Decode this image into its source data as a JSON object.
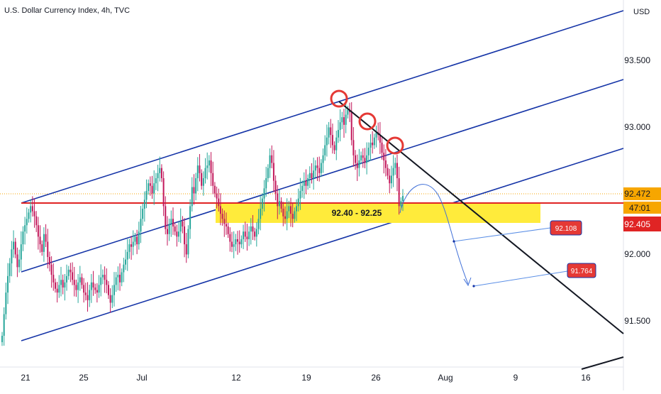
{
  "header": {
    "title": "U.S. Dollar Currency Index, 4h, TVC",
    "currency": "USD"
  },
  "chart_data": {
    "type": "candlestick",
    "ylim": [
      91.2,
      93.9
    ],
    "y_ticks": [
      "93.500",
      "93.000",
      "92.000",
      "91.500"
    ],
    "x_ticks": [
      "21",
      "25",
      "Jul",
      "12",
      "19",
      "26",
      "Aug",
      "9",
      "16"
    ],
    "price_labels": {
      "last": "92.472",
      "countdown": "47:01",
      "current": "92.405"
    },
    "zone": {
      "label": "92.40 - 92.25",
      "top": 92.4,
      "bottom": 92.25
    },
    "resistance_level": 92.405,
    "targets": [
      {
        "label": "92.108",
        "value": 92.108
      },
      {
        "label": "91.764",
        "value": 91.764
      }
    ],
    "candle_closes": [
      91.38,
      91.55,
      91.72,
      91.85,
      91.95,
      92.06,
      92.12,
      92.02,
      91.92,
      91.98,
      92.1,
      92.2,
      92.25,
      92.3,
      92.35,
      92.4,
      92.36,
      92.32,
      92.25,
      92.16,
      92.1,
      92.04,
      92.18,
      92.12,
      92.0,
      91.94,
      91.86,
      91.8,
      91.75,
      91.72,
      91.78,
      91.82,
      91.76,
      91.8,
      91.85,
      91.9,
      91.88,
      91.82,
      91.78,
      91.74,
      91.8,
      91.84,
      91.78,
      91.72,
      91.7,
      91.66,
      91.74,
      91.8,
      91.76,
      91.74,
      91.72,
      91.78,
      91.84,
      91.86,
      91.82,
      91.78,
      91.7,
      91.64,
      91.7,
      91.78,
      91.84,
      91.86,
      91.8,
      91.88,
      91.94,
      91.98,
      92.04,
      92.1,
      92.08,
      92.12,
      92.16,
      92.1,
      92.2,
      92.3,
      92.38,
      92.45,
      92.52,
      92.58,
      92.56,
      92.5,
      92.58,
      92.62,
      92.66,
      92.7,
      92.62,
      92.4,
      92.22,
      92.18,
      92.26,
      92.3,
      92.24,
      92.2,
      92.16,
      92.2,
      92.28,
      92.24,
      92.1,
      92.02,
      92.22,
      92.4,
      92.55,
      92.5,
      92.62,
      92.72,
      92.66,
      92.56,
      92.62,
      92.7,
      92.72,
      92.76,
      92.66,
      92.56,
      92.5,
      92.46,
      92.4,
      92.34,
      92.3,
      92.26,
      92.24,
      92.18,
      92.12,
      92.08,
      92.1,
      92.14,
      92.12,
      92.1,
      92.14,
      92.2,
      92.16,
      92.14,
      92.2,
      92.24,
      92.2,
      92.16,
      92.22,
      92.3,
      92.38,
      92.46,
      92.54,
      92.62,
      92.7,
      92.8,
      92.74,
      92.6,
      92.5,
      92.4,
      92.44,
      92.38,
      92.32,
      92.3,
      92.36,
      92.4,
      92.34,
      92.3,
      92.36,
      92.4,
      92.46,
      92.52,
      92.56,
      92.6,
      92.56,
      92.62,
      92.66,
      92.62,
      92.68,
      92.72,
      92.7,
      92.66,
      92.74,
      92.8,
      92.88,
      92.94,
      93.02,
      92.96,
      92.88,
      92.84,
      92.94,
      93.0,
      93.06,
      93.1,
      93.04,
      93.12,
      93.16,
      93.14,
      92.92,
      92.8,
      92.74,
      92.7,
      92.76,
      92.8,
      92.78,
      92.74,
      92.8,
      92.86,
      92.9,
      92.88,
      92.94,
      92.98,
      92.96,
      92.9,
      92.82,
      92.76,
      92.7,
      92.64,
      92.58,
      92.64,
      92.7,
      92.74,
      92.62,
      92.4,
      92.44,
      92.48
    ]
  }
}
